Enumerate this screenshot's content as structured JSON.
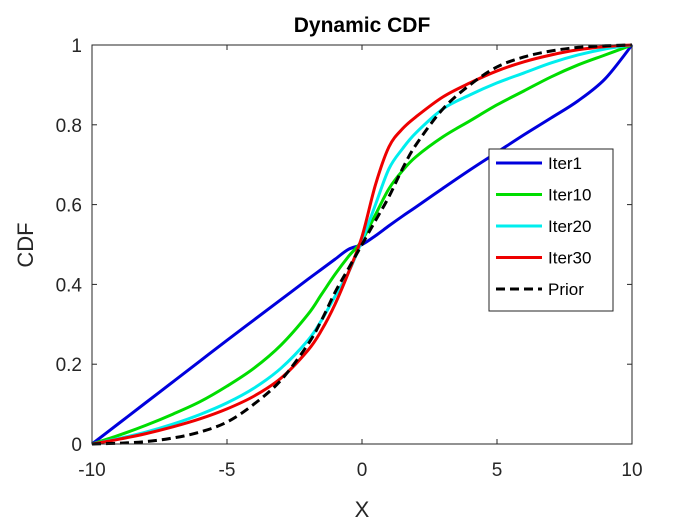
{
  "chart_data": {
    "type": "line",
    "title": "Dynamic CDF",
    "xlabel": "X",
    "ylabel": "CDF",
    "xlim": [
      -10,
      10
    ],
    "ylim": [
      0,
      1
    ],
    "xticks": [
      -10,
      -5,
      0,
      5,
      10
    ],
    "yticks": [
      0,
      0.2,
      0.4,
      0.6,
      0.8,
      1
    ],
    "xtick_labels": [
      "-10",
      "-5",
      "0",
      "5",
      "10"
    ],
    "ytick_labels": [
      "0",
      "0.2",
      "0.4",
      "0.6",
      "0.8",
      "1"
    ],
    "grid": false,
    "legend_position": "right",
    "x": [
      -10,
      -9,
      -8,
      -7,
      -6,
      -5,
      -4,
      -3,
      -2,
      -1.5,
      -1,
      -0.5,
      0,
      0.5,
      1,
      1.5,
      2,
      3,
      4,
      5,
      6,
      7,
      8,
      9,
      10
    ],
    "series": [
      {
        "name": "Iter1",
        "color": "#0000dd",
        "dash": "solid",
        "values": [
          0.0,
          0.052,
          0.104,
          0.156,
          0.208,
          0.26,
          0.311,
          0.362,
          0.413,
          0.438,
          0.463,
          0.488,
          0.5,
          0.522,
          0.547,
          0.571,
          0.594,
          0.641,
          0.687,
          0.731,
          0.775,
          0.817,
          0.86,
          0.915,
          1.0
        ]
      },
      {
        "name": "Iter10",
        "color": "#00dd00",
        "dash": "solid",
        "values": [
          0.0,
          0.022,
          0.047,
          0.075,
          0.106,
          0.145,
          0.19,
          0.248,
          0.325,
          0.375,
          0.425,
          0.47,
          0.51,
          0.575,
          0.64,
          0.685,
          0.72,
          0.77,
          0.81,
          0.85,
          0.885,
          0.92,
          0.95,
          0.975,
          1.0
        ]
      },
      {
        "name": "Iter20",
        "color": "#00eeee",
        "dash": "solid",
        "values": [
          0.0,
          0.014,
          0.03,
          0.05,
          0.074,
          0.103,
          0.14,
          0.19,
          0.26,
          0.31,
          0.37,
          0.43,
          0.51,
          0.6,
          0.69,
          0.74,
          0.78,
          0.84,
          0.875,
          0.905,
          0.93,
          0.955,
          0.975,
          0.99,
          1.0
        ]
      },
      {
        "name": "Iter30",
        "color": "#ee0000",
        "dash": "solid",
        "values": [
          0.0,
          0.012,
          0.026,
          0.043,
          0.063,
          0.088,
          0.12,
          0.165,
          0.235,
          0.285,
          0.35,
          0.43,
          0.52,
          0.65,
          0.745,
          0.79,
          0.82,
          0.87,
          0.905,
          0.935,
          0.958,
          0.975,
          0.988,
          0.996,
          1.0
        ]
      },
      {
        "name": "Prior",
        "color": "#000000",
        "dash": "dashed",
        "values": [
          0.0,
          0.002,
          0.006,
          0.015,
          0.03,
          0.055,
          0.1,
          0.16,
          0.25,
          0.31,
          0.38,
          0.44,
          0.5,
          0.56,
          0.62,
          0.69,
          0.75,
          0.84,
          0.9,
          0.945,
          0.97,
          0.985,
          0.994,
          0.998,
          1.0
        ]
      }
    ]
  }
}
